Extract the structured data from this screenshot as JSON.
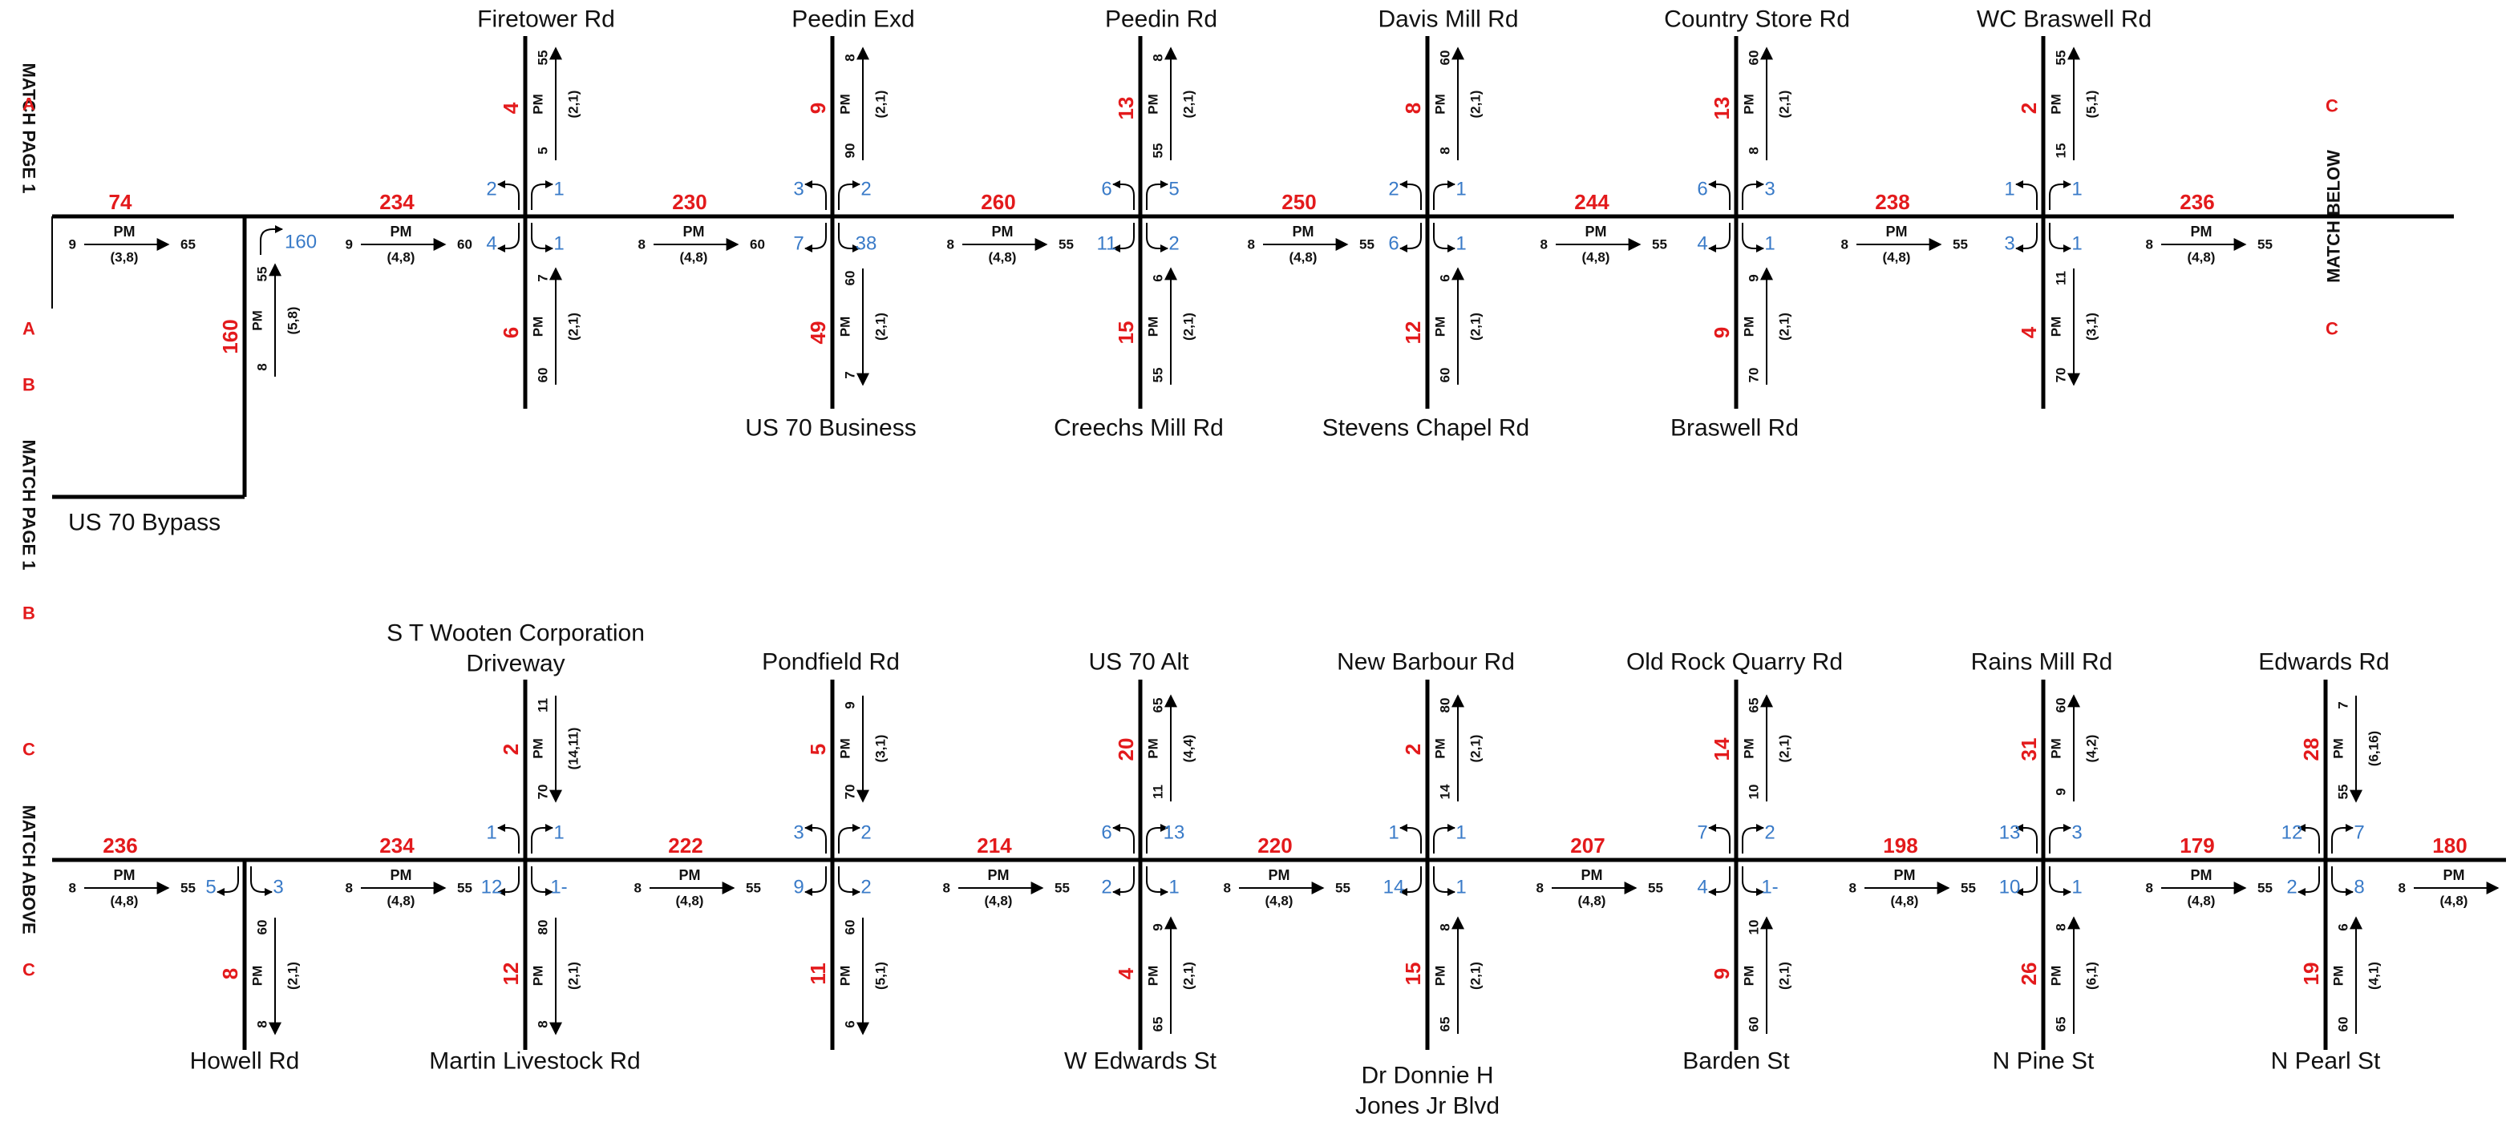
{
  "colors": {
    "line": "#000000",
    "volume": "#e31a1c",
    "turn": "#3a7bc8",
    "text": "#111111"
  },
  "match_labels": {
    "A": "A",
    "B": "B",
    "C": "C",
    "page1": "MATCH PAGE 1",
    "below": "MATCH BELOW",
    "above": "MATCH ABOVE"
  },
  "bypass": {
    "name": "US 70 Bypass",
    "volume": "160",
    "left_turn": "160",
    "pm_label": "PM",
    "top_num": "55",
    "bottom_num": "8",
    "pair": "(5,8)"
  },
  "top_links": [
    {
      "volume": "74",
      "pm_label": "PM",
      "left": "9",
      "right": "65",
      "pair": "(3,8)"
    },
    {
      "volume": "234",
      "pm_label": "PM",
      "left": "9",
      "right": "60",
      "pair": "(4,8)"
    },
    {
      "volume": "230",
      "pm_label": "PM",
      "left": "8",
      "right": "60",
      "pair": "(4,8)"
    },
    {
      "volume": "260",
      "pm_label": "PM",
      "left": "8",
      "right": "55",
      "pair": "(4,8)"
    },
    {
      "volume": "250",
      "pm_label": "PM",
      "left": "8",
      "right": "55",
      "pair": "(4,8)"
    },
    {
      "volume": "244",
      "pm_label": "PM",
      "left": "8",
      "right": "55",
      "pair": "(4,8)"
    },
    {
      "volume": "238",
      "pm_label": "PM",
      "left": "8",
      "right": "55",
      "pair": "(4,8)"
    },
    {
      "volume": "236",
      "pm_label": "PM",
      "left": "8",
      "right": "55",
      "pair": "(4,8)"
    }
  ],
  "top_intersections": [
    {
      "north": "Firetower Rd",
      "south": "",
      "north_vol": "4",
      "south_vol": "6",
      "n_a": "5",
      "n_b": "55",
      "n_pair": "(2,1)",
      "s_a": "60",
      "s_b": "7",
      "s_pair": "(2,1)",
      "t_nw": "2",
      "t_ne": "1",
      "t_sw": "4",
      "t_se": "1",
      "pm": "PM"
    },
    {
      "north": "Peedin Exd",
      "south": "US 70 Business",
      "north_vol": "9",
      "south_vol": "49",
      "n_a": "90",
      "n_b": "8",
      "n_pair": "(2,1)",
      "s_a": "7",
      "s_b": "60",
      "s_pair": "(2,1)",
      "t_nw": "3",
      "t_ne": "2",
      "t_sw": "7",
      "t_se": "38",
      "pm": "PM"
    },
    {
      "north": "Peedin Rd",
      "south": "Creechs Mill Rd",
      "north_vol": "13",
      "south_vol": "15",
      "n_a": "55",
      "n_b": "8",
      "n_pair": "(2,1)",
      "s_a": "55",
      "s_b": "6",
      "s_pair": "(2,1)",
      "t_nw": "6",
      "t_ne": "5",
      "t_sw": "11",
      "t_se": "2",
      "pm": "PM"
    },
    {
      "north": "Davis Mill Rd",
      "south": "Stevens Chapel Rd",
      "north_vol": "8",
      "south_vol": "12",
      "n_a": "8",
      "n_b": "60",
      "n_pair": "(2,1)",
      "s_a": "60",
      "s_b": "6",
      "s_pair": "(2,1)",
      "t_nw": "2",
      "t_ne": "1",
      "t_sw": "6",
      "t_se": "1",
      "pm": "PM"
    },
    {
      "north": "Country Store Rd",
      "south": "Braswell Rd",
      "north_vol": "13",
      "south_vol": "9",
      "n_a": "8",
      "n_b": "60",
      "n_pair": "(2,1)",
      "s_a": "70",
      "s_b": "9",
      "s_pair": "(2,1)",
      "t_nw": "6",
      "t_ne": "3",
      "t_sw": "4",
      "t_se": "1",
      "pm": "PM"
    },
    {
      "north": "WC Braswell Rd",
      "south": "",
      "north_vol": "2",
      "south_vol": "4",
      "n_a": "15",
      "n_b": "55",
      "n_pair": "(5,1)",
      "s_a": "70",
      "s_b": "11",
      "s_pair": "(3,1)",
      "t_nw": "1",
      "t_ne": "1",
      "t_sw": "3",
      "t_se": "1",
      "pm": "PM"
    }
  ],
  "bottom_links": [
    {
      "volume": "236",
      "pm_label": "PM",
      "left": "8",
      "right": "55",
      "pair": "(4,8)"
    },
    {
      "volume": "234",
      "pm_label": "PM",
      "left": "8",
      "right": "55",
      "pair": "(4,8)"
    },
    {
      "volume": "222",
      "pm_label": "PM",
      "left": "8",
      "right": "55",
      "pair": "(4,8)"
    },
    {
      "volume": "214",
      "pm_label": "PM",
      "left": "8",
      "right": "55",
      "pair": "(4,8)"
    },
    {
      "volume": "220",
      "pm_label": "PM",
      "left": "8",
      "right": "55",
      "pair": "(4,8)"
    },
    {
      "volume": "207",
      "pm_label": "PM",
      "left": "8",
      "right": "55",
      "pair": "(4,8)"
    },
    {
      "volume": "198",
      "pm_label": "PM",
      "left": "8",
      "right": "55",
      "pair": "(4,8)"
    },
    {
      "volume": "179",
      "pm_label": "PM",
      "left": "8",
      "right": "55",
      "pair": "(4,8)"
    },
    {
      "volume": "180",
      "pm_label": "PM",
      "left": "8",
      "right": "55",
      "pair": "(4,8)"
    }
  ],
  "bottom_intersections": [
    {
      "north": "",
      "south": "Howell Rd",
      "north_vol": "",
      "south_vol": "8",
      "n_a": "",
      "n_b": "",
      "n_pair": "",
      "s_a": "8",
      "s_b": "60",
      "s_pair": "(2,1)",
      "t_nw": "",
      "t_ne": "",
      "t_sw": "5",
      "t_se": "3",
      "pm": "PM"
    },
    {
      "north": "S T Wooten Corporation Driveway",
      "south": "Martin Livestock Rd",
      "north_vol": "2",
      "south_vol": "12",
      "n_a": "70",
      "n_b": "11",
      "n_pair": "(14,11)",
      "s_a": "8",
      "s_b": "80",
      "s_pair": "(2,1)",
      "t_nw": "1",
      "t_ne": "1",
      "t_sw": "12",
      "t_se": "1-",
      "pm": "PM"
    },
    {
      "north": "Pondfield Rd",
      "south": "",
      "north_vol": "5",
      "south_vol": "11",
      "n_a": "70",
      "n_b": "9",
      "n_pair": "(3,1)",
      "s_a": "6",
      "s_b": "60",
      "s_pair": "(5,1)",
      "t_nw": "3",
      "t_ne": "2",
      "t_sw": "9",
      "t_se": "2",
      "pm": "PM"
    },
    {
      "north": "US 70 Alt",
      "south": "W Edwards St",
      "north_vol": "20",
      "south_vol": "4",
      "n_a": "11",
      "n_b": "65",
      "n_pair": "(4,4)",
      "s_a": "65",
      "s_b": "9",
      "s_pair": "(2,1)",
      "t_nw": "6",
      "t_ne": "13",
      "t_sw": "2",
      "t_se": "1",
      "pm": "PM"
    },
    {
      "north": "New Barbour Rd",
      "south": "Dr Donnie H Jones Jr Blvd",
      "north_vol": "2",
      "south_vol": "15",
      "n_a": "14",
      "n_b": "80",
      "n_pair": "(2,1)",
      "s_a": "65",
      "s_b": "8",
      "s_pair": "(2,1)",
      "t_nw": "1",
      "t_ne": "1",
      "t_sw": "14",
      "t_se": "1",
      "pm": "PM"
    },
    {
      "north": "Old Rock Quarry Rd",
      "south": "Barden St",
      "north_vol": "14",
      "south_vol": "9",
      "n_a": "10",
      "n_b": "65",
      "n_pair": "(2,1)",
      "s_a": "60",
      "s_b": "10",
      "s_pair": "(2,1)",
      "t_nw": "7",
      "t_ne": "2",
      "t_sw": "4",
      "t_se": "1-",
      "pm": "PM"
    },
    {
      "north": "Rains Mill Rd",
      "south": "N Pine St",
      "north_vol": "31",
      "south_vol": "26",
      "n_a": "9",
      "n_b": "60",
      "n_pair": "(4,2)",
      "s_a": "65",
      "s_b": "8",
      "s_pair": "(6,1)",
      "t_nw": "13",
      "t_ne": "3",
      "t_sw": "10",
      "t_se": "1",
      "pm": "PM"
    },
    {
      "north": "Edwards Rd",
      "south": "N Pearl St",
      "north_vol": "28",
      "south_vol": "19",
      "n_a": "55",
      "n_b": "7",
      "n_pair": "(6,16)",
      "s_a": "60",
      "s_b": "6",
      "s_pair": "(4,1)",
      "t_nw": "12",
      "t_ne": "7",
      "t_sw": "2",
      "t_se": "8",
      "pm": "PM"
    }
  ]
}
